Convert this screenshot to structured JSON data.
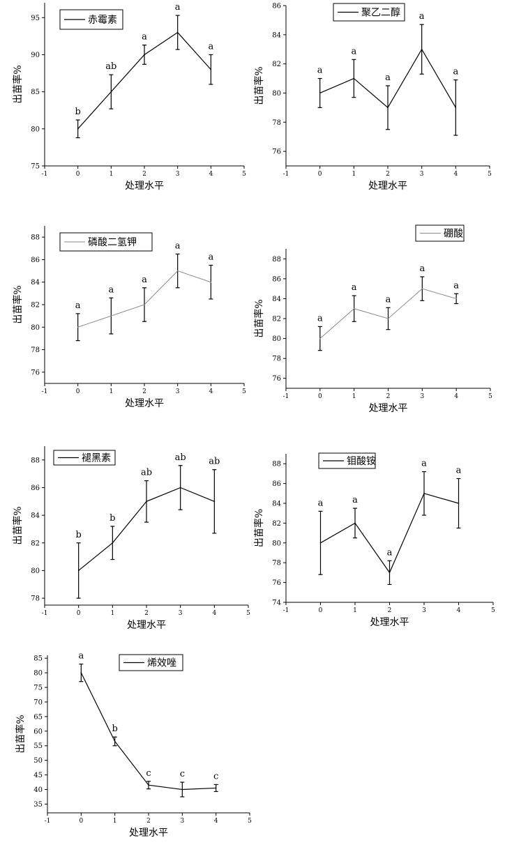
{
  "chart_data": [
    {
      "type": "line",
      "legend": "赤霉素",
      "xlabel": "处理水平",
      "ylabel": "出苗率%",
      "xlim": [
        -1,
        5
      ],
      "ylim": [
        75,
        97
      ],
      "yticks": [
        75,
        80,
        85,
        90,
        95
      ],
      "xticks": [
        -1,
        0,
        1,
        2,
        3,
        4,
        5
      ],
      "x": [
        0,
        1,
        2,
        3,
        4
      ],
      "values": [
        80,
        85,
        90,
        93,
        88
      ],
      "errors": [
        1.2,
        2.3,
        1.3,
        2.3,
        2
      ],
      "letters": [
        "b",
        "ab",
        "a",
        "a",
        "a"
      ]
    },
    {
      "type": "line",
      "legend": "聚乙二醇",
      "xlabel": "处理水平",
      "ylabel": "出苗率%",
      "xlim": [
        -1,
        5
      ],
      "ylim": [
        75,
        86
      ],
      "yticks": [
        76,
        78,
        80,
        82,
        84,
        86
      ],
      "xticks": [
        -1,
        0,
        1,
        2,
        3,
        4,
        5
      ],
      "x": [
        0,
        1,
        2,
        3,
        4
      ],
      "values": [
        80,
        81,
        79,
        83,
        79
      ],
      "errors": [
        1,
        1.3,
        1.5,
        1.7,
        1.9
      ],
      "letters": [
        "a",
        "a",
        "a",
        "a",
        "a"
      ]
    },
    {
      "type": "line",
      "legend": "磷酸二氢钾",
      "xlabel": "处理水平",
      "ylabel": "出苗率%",
      "xlim": [
        -1,
        5
      ],
      "ylim": [
        75,
        89
      ],
      "yticks": [
        76,
        78,
        80,
        82,
        84,
        86,
        88
      ],
      "xticks": [
        -1,
        0,
        1,
        2,
        3,
        4,
        5
      ],
      "x": [
        0,
        1,
        2,
        3,
        4
      ],
      "values": [
        80,
        81,
        82,
        85,
        84
      ],
      "errors": [
        1.2,
        1.6,
        1.5,
        1.5,
        1.5
      ],
      "letters": [
        "a",
        "a",
        "a",
        "a",
        "a"
      ]
    },
    {
      "type": "line",
      "legend": "硼酸",
      "xlabel": "处理水平",
      "ylabel": "出苗率%",
      "xlim": [
        -1,
        5
      ],
      "ylim": [
        75,
        89
      ],
      "yticks": [
        76,
        78,
        80,
        82,
        84,
        86,
        88
      ],
      "xticks": [
        -1,
        0,
        1,
        2,
        3,
        4,
        5
      ],
      "x": [
        0,
        1,
        2,
        3,
        4
      ],
      "values": [
        80,
        83,
        82,
        85,
        84
      ],
      "errors": [
        1.2,
        1.3,
        1.1,
        1.2,
        0.5
      ],
      "letters": [
        "a",
        "a",
        "a",
        "a",
        "a"
      ]
    },
    {
      "type": "line",
      "legend": "褪黑素",
      "xlabel": "处理水平",
      "ylabel": "出苗率%",
      "xlim": [
        -1,
        5
      ],
      "ylim": [
        77.5,
        89
      ],
      "yticks": [
        78,
        80,
        82,
        84,
        86,
        88
      ],
      "xticks": [
        -1,
        0,
        1,
        2,
        3,
        4,
        5
      ],
      "x": [
        0,
        1,
        2,
        3,
        4
      ],
      "values": [
        80,
        82,
        85,
        86,
        85
      ],
      "errors": [
        2,
        1.2,
        1.5,
        1.6,
        2.3
      ],
      "letters": [
        "b",
        "b",
        "ab",
        "ab",
        "ab"
      ]
    },
    {
      "type": "line",
      "legend": "钼酸铵",
      "xlabel": "处理水平",
      "ylabel": "出苗率%",
      "xlim": [
        -1,
        5
      ],
      "ylim": [
        74,
        89
      ],
      "yticks": [
        74,
        76,
        78,
        80,
        82,
        84,
        86,
        88
      ],
      "xticks": [
        -1,
        0,
        1,
        2,
        3,
        4,
        5
      ],
      "x": [
        0,
        1,
        2,
        3,
        4
      ],
      "values": [
        80,
        82,
        77,
        85,
        84
      ],
      "errors": [
        3.2,
        1.5,
        1.2,
        2.2,
        2.5
      ],
      "letters": [
        "a",
        "a",
        "a",
        "a",
        "a"
      ]
    },
    {
      "type": "line",
      "legend": "烯效唑",
      "xlabel": "处理水平",
      "ylabel": "出苗率%",
      "xlim": [
        -1,
        5
      ],
      "ylim": [
        32,
        86
      ],
      "yticks": [
        35,
        40,
        45,
        50,
        55,
        60,
        65,
        70,
        75,
        80,
        85
      ],
      "xticks": [
        -1,
        0,
        1,
        2,
        3,
        4,
        5
      ],
      "x": [
        0,
        1,
        2,
        3,
        4
      ],
      "values": [
        80,
        56.5,
        41.5,
        40,
        40.5
      ],
      "errors": [
        3,
        1.5,
        1.3,
        2.5,
        1.2
      ],
      "letters": [
        "a",
        "b",
        "c",
        "c",
        "c"
      ]
    }
  ]
}
